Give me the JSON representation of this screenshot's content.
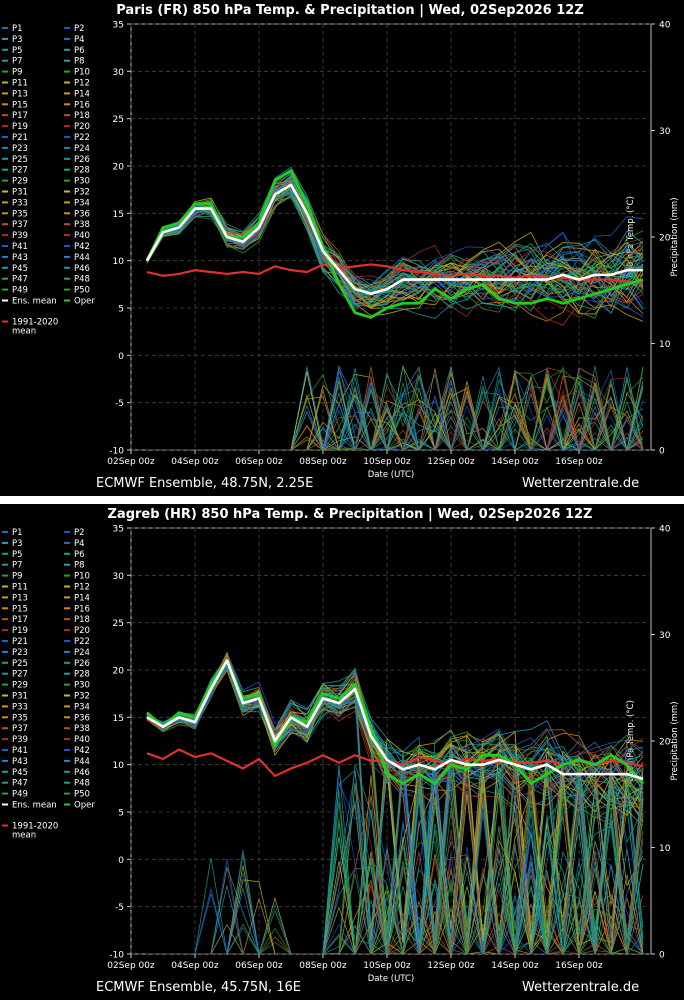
{
  "panels": [
    {
      "title": "Paris  (FR)  850 hPa Temp. & Precipitation | Wed, 02Sep2026 12Z",
      "footer_left": "ECMWF Ensemble, 48.75N, 2.25E",
      "footer_right": "Wetterzentrale.de"
    },
    {
      "title": "Zagreb  (HR)  850 hPa Temp. & Precipitation | Wed, 02Sep2026 12Z",
      "footer_left": "ECMWF Ensemble, 45.75N, 16E",
      "footer_right": "Wetterzentrale.de"
    }
  ],
  "legend": {
    "members": [
      "P1",
      "P2",
      "P3",
      "P4",
      "P5",
      "P6",
      "P7",
      "P8",
      "P9",
      "P10",
      "P11",
      "P12",
      "P13",
      "P14",
      "P15",
      "P16",
      "P17",
      "P18",
      "P19",
      "P20",
      "P21",
      "P22",
      "P23",
      "P24",
      "P25",
      "P26",
      "P27",
      "P28",
      "P29",
      "P30",
      "P31",
      "P32",
      "P33",
      "P34",
      "P35",
      "P36",
      "P37",
      "P38",
      "P39",
      "P40",
      "P41",
      "P42",
      "P43",
      "P44",
      "P45",
      "P46",
      "P47",
      "P48",
      "P49",
      "P50"
    ],
    "member_colors": [
      "#1f77b4",
      "#1f4fd8",
      "#2aa0c8",
      "#1f77b4",
      "#1aa39a",
      "#1aa39a",
      "#17a58c",
      "#1fa3a3",
      "#2ca02c",
      "#2ca02c",
      "#bcbd22",
      "#bcbd22",
      "#c8a020",
      "#c8a020",
      "#d08a20",
      "#d08a20",
      "#c05020",
      "#c05020",
      "#b03020",
      "#b03020",
      "#1f5fc8",
      "#1f4fd8",
      "#2a7fd0",
      "#2a7fd0",
      "#1aa0a0",
      "#1aa0a0",
      "#17a58c",
      "#17a58c",
      "#2ca02c",
      "#2ca02c",
      "#bcbd22",
      "#bcbd22",
      "#c8a020",
      "#c8a020",
      "#d08a20",
      "#d08a20",
      "#c05020",
      "#c05020",
      "#b03020",
      "#b03020",
      "#1f5fc8",
      "#1f4fd8",
      "#2a7fd0",
      "#2a7fd0",
      "#1aa0a0",
      "#1aa0a0",
      "#17a58c",
      "#17a58c",
      "#2ca02c",
      "#2ca02c"
    ],
    "ens_mean": "Ens. mean",
    "oper": "Oper",
    "climate": "1991-2020",
    "climate_sub": "mean",
    "ens_mean_color": "#ffffff",
    "oper_color": "#22cc22",
    "climate_color": "#e03030"
  },
  "axes": {
    "ylabel_left": "850 hPa Temp. (°C)",
    "ylabel_right": "Precipitation (mm)",
    "xlabel": "Date (UTC)",
    "x_ticks": [
      "02Sep 00z",
      "04Sep 00z",
      "06Sep 00z",
      "08Sep 00z",
      "10Sep 00z",
      "12Sep 00z",
      "14Sep 00z",
      "16Sep 00z"
    ],
    "y_left_ticks": [
      "-10",
      "-5",
      "0",
      "5",
      "10",
      "15",
      "20",
      "25",
      "30",
      "35"
    ],
    "y_right_ticks": [
      "0",
      "10",
      "20",
      "30",
      "40"
    ]
  },
  "chart_data": [
    {
      "type": "line",
      "title": "Paris  (FR)  850 hPa Temp. & Precipitation | Wed, 02Sep2026 12Z",
      "xlabel": "Date (UTC)",
      "ylabel": "850 hPa Temp. (°C)",
      "ylabel_right": "Precipitation (mm)",
      "ylim": [
        -10,
        35
      ],
      "ylim_right": [
        0,
        40
      ],
      "x_hours_from_02Sep00z": [
        12,
        24,
        36,
        48,
        60,
        72,
        84,
        96,
        108,
        120,
        132,
        144,
        156,
        168,
        180,
        192,
        204,
        216,
        228,
        240,
        252,
        264,
        276,
        288,
        300,
        312,
        324,
        336,
        348,
        360,
        372,
        384
      ],
      "series": [
        {
          "name": "Ens. mean",
          "values": [
            10,
            13,
            13.5,
            15.5,
            15.5,
            12.5,
            12,
            13.5,
            17,
            18,
            15,
            11,
            9,
            7,
            6.5,
            7,
            8,
            8,
            8,
            8,
            8,
            8,
            8,
            8,
            8,
            8,
            8.5,
            8,
            8.5,
            8.5,
            9,
            9
          ]
        },
        {
          "name": "Oper",
          "values": [
            10,
            13.5,
            14,
            16,
            16,
            12.5,
            12.5,
            14,
            18.5,
            19.5,
            16,
            11.5,
            7.5,
            4.5,
            4,
            5,
            5.5,
            5.5,
            7,
            6,
            7,
            7.5,
            6,
            5.5,
            5.5,
            6,
            5.5,
            6,
            6.5,
            7,
            7.5,
            8
          ]
        },
        {
          "name": "1991-2020 mean",
          "values": [
            8.8,
            8.4,
            8.6,
            9,
            8.8,
            8.6,
            8.8,
            8.6,
            9.4,
            9,
            8.8,
            9.6,
            9.2,
            9.4,
            9.6,
            9.4,
            9,
            8.8,
            8.6,
            8.4,
            8.6,
            8.4,
            8.4,
            8.2,
            8.4,
            8.2,
            8.2,
            8,
            8,
            8,
            7.8,
            7.6
          ]
        }
      ]
    },
    {
      "type": "line",
      "title": "Zagreb  (HR)  850 hPa Temp. & Precipitation | Wed, 02Sep2026 12Z",
      "xlabel": "Date (UTC)",
      "ylabel": "850 hPa Temp. (°C)",
      "ylabel_right": "Precipitation (mm)",
      "ylim": [
        -10,
        35
      ],
      "ylim_right": [
        0,
        40
      ],
      "x_hours_from_02Sep00z": [
        12,
        24,
        36,
        48,
        60,
        72,
        84,
        96,
        108,
        120,
        132,
        144,
        156,
        168,
        180,
        192,
        204,
        216,
        228,
        240,
        252,
        264,
        276,
        288,
        300,
        312,
        324,
        336,
        348,
        360,
        372,
        384
      ],
      "series": [
        {
          "name": "Ens. mean",
          "values": [
            15,
            14,
            15,
            14.5,
            18,
            21,
            16.5,
            17,
            12.5,
            15,
            14,
            17,
            16.5,
            18,
            13,
            10.5,
            9.5,
            10,
            9.5,
            10.5,
            10,
            10,
            10.5,
            10,
            9.5,
            10,
            9,
            9,
            9,
            9,
            9,
            8.5
          ]
        },
        {
          "name": "Oper",
          "values": [
            15.5,
            14,
            15.5,
            15,
            18.5,
            21,
            17,
            17.5,
            12,
            15,
            14.5,
            17.5,
            17,
            18.5,
            14,
            9,
            8,
            9,
            8,
            10,
            9.5,
            11,
            11,
            10,
            8,
            9,
            10,
            10.5,
            10,
            11,
            10,
            8
          ]
        },
        {
          "name": "1991-2020 mean",
          "values": [
            11.2,
            10.6,
            11.6,
            10.8,
            11.2,
            10.4,
            9.6,
            10.6,
            8.8,
            9.6,
            10.2,
            11,
            10.2,
            11,
            10.4,
            10.4,
            10,
            10.8,
            10.4,
            10,
            10.6,
            10.4,
            10.6,
            10.2,
            10.2,
            10.4,
            10,
            10.4,
            10,
            10.4,
            10.2,
            9.8
          ]
        }
      ]
    }
  ]
}
